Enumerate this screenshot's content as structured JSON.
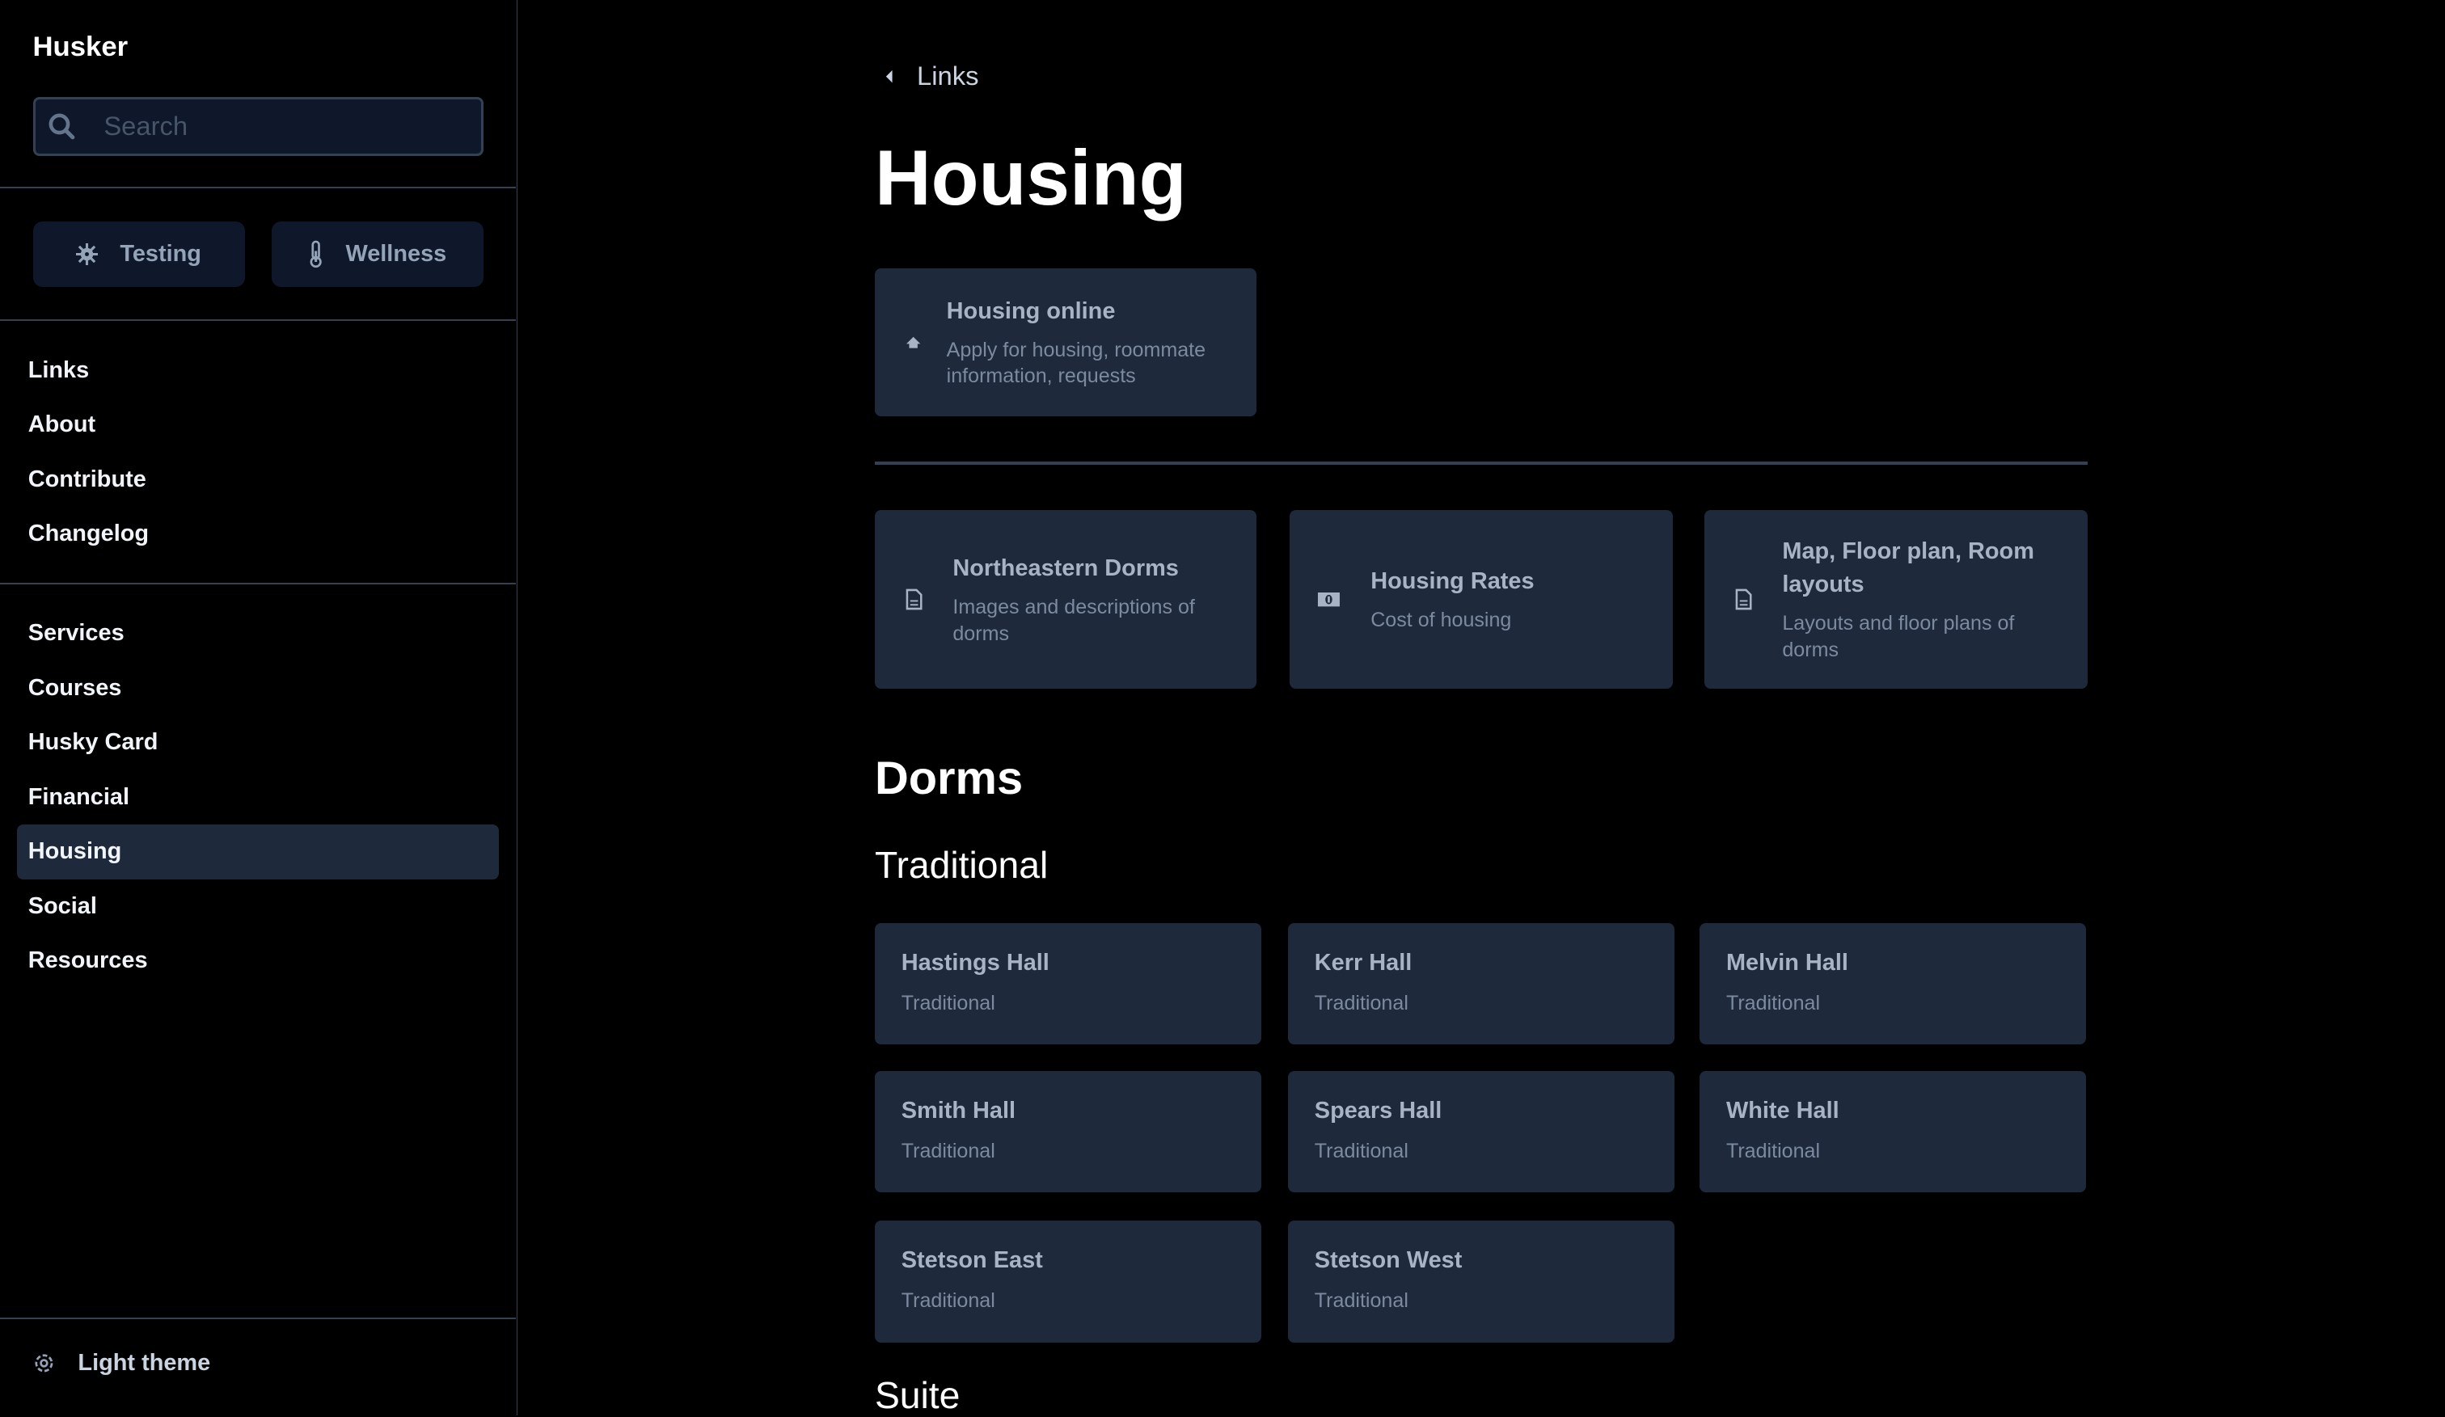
{
  "sidebar": {
    "brand": "Husker",
    "search_placeholder": "Search",
    "quick_buttons": [
      {
        "label": "Testing",
        "icon": "virus-icon"
      },
      {
        "label": "Wellness",
        "icon": "thermometer-icon"
      }
    ],
    "nav_group1": [
      "Links",
      "About",
      "Contribute",
      "Changelog"
    ],
    "nav_group2": [
      "Services",
      "Courses",
      "Husky Card",
      "Financial",
      "Housing",
      "Social",
      "Resources"
    ],
    "active_item": "Housing",
    "theme_toggle": "Light theme"
  },
  "main": {
    "back_label": "Links",
    "title": "Housing",
    "featured": {
      "title": "Housing online",
      "desc": "Apply for housing, roommate information, requests",
      "icon": "home-icon"
    },
    "links": [
      {
        "title": "Northeastern Dorms",
        "desc": "Images and descriptions of dorms",
        "icon": "document-icon"
      },
      {
        "title": "Housing Rates",
        "desc": "Cost of housing",
        "icon": "money-icon"
      },
      {
        "title": "Map, Floor plan, Room layouts",
        "desc": "Layouts and floor plans of dorms",
        "icon": "document-icon"
      }
    ],
    "section": "Dorms",
    "subsections": [
      {
        "title": "Traditional",
        "dorms": [
          {
            "name": "Hastings Hall",
            "type": "Traditional"
          },
          {
            "name": "Kerr Hall",
            "type": "Traditional"
          },
          {
            "name": "Melvin Hall",
            "type": "Traditional"
          },
          {
            "name": "Smith Hall",
            "type": "Traditional"
          },
          {
            "name": "Spears Hall",
            "type": "Traditional"
          },
          {
            "name": "White Hall",
            "type": "Traditional"
          },
          {
            "name": "Stetson East",
            "type": "Traditional"
          },
          {
            "name": "Stetson West",
            "type": "Traditional"
          }
        ]
      },
      {
        "title": "Suite"
      }
    ]
  },
  "colors": {
    "background": "#000000",
    "card": "#1e293b",
    "input": "#0f172a",
    "border": "#334155"
  }
}
